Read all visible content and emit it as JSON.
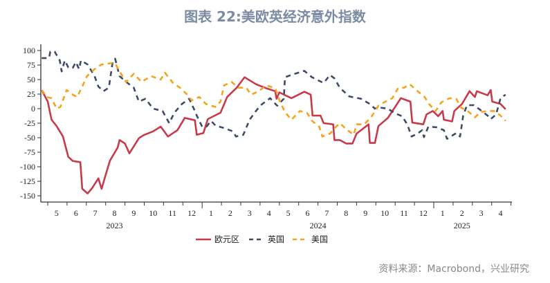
{
  "title": "图表 22:美欧英经济意外指数",
  "source": "资料来源：Macrobond，兴业研究",
  "chart_data": {
    "type": "line",
    "title": "图表 22:美欧英经济意外指数",
    "xlabel": "",
    "ylabel": "",
    "ylim": [
      -150,
      100
    ],
    "yticks": [
      100,
      75,
      50,
      25,
      0,
      -25,
      -50,
      -75,
      -100,
      -125,
      -150
    ],
    "xlim": [
      "2023-04-20",
      "2025-04-30"
    ],
    "xtick_months": [
      {
        "label": "5",
        "date": "2023-05-15"
      },
      {
        "label": "6",
        "date": "2023-06-15"
      },
      {
        "label": "7",
        "date": "2023-07-15"
      },
      {
        "label": "8",
        "date": "2023-08-15"
      },
      {
        "label": "9",
        "date": "2023-09-15"
      },
      {
        "label": "10",
        "date": "2023-10-15"
      },
      {
        "label": "11",
        "date": "2023-11-15"
      },
      {
        "label": "12",
        "date": "2023-12-15"
      },
      {
        "label": "1",
        "date": "2024-01-15"
      },
      {
        "label": "2",
        "date": "2024-02-15"
      },
      {
        "label": "3",
        "date": "2024-03-15"
      },
      {
        "label": "4",
        "date": "2024-04-15"
      },
      {
        "label": "5",
        "date": "2024-05-15"
      },
      {
        "label": "6",
        "date": "2024-06-15"
      },
      {
        "label": "7",
        "date": "2024-07-15"
      },
      {
        "label": "8",
        "date": "2024-08-15"
      },
      {
        "label": "9",
        "date": "2024-09-15"
      },
      {
        "label": "10",
        "date": "2024-10-15"
      },
      {
        "label": "11",
        "date": "2024-11-15"
      },
      {
        "label": "12",
        "date": "2024-12-15"
      },
      {
        "label": "1",
        "date": "2025-01-15"
      },
      {
        "label": "2",
        "date": "2025-02-15"
      },
      {
        "label": "3",
        "date": "2025-03-15"
      },
      {
        "label": "4",
        "date": "2025-04-15"
      }
    ],
    "xtick_years": [
      {
        "label": "2023",
        "date": "2023-08-15"
      },
      {
        "label": "2024",
        "date": "2024-07-01"
      },
      {
        "label": "2025",
        "date": "2025-02-15"
      }
    ],
    "grid": false,
    "legend": "bottom",
    "series": [
      {
        "name": "欧元区",
        "color": "#c8394b",
        "style": "solid",
        "points": [
          [
            "2023-04-22",
            32
          ],
          [
            "2023-05-01",
            12
          ],
          [
            "2023-05-07",
            -19
          ],
          [
            "2023-05-15",
            -30
          ],
          [
            "2023-05-25",
            -48
          ],
          [
            "2023-06-03",
            -83
          ],
          [
            "2023-06-10",
            -90
          ],
          [
            "2023-06-22",
            -92
          ],
          [
            "2023-06-25",
            -138
          ],
          [
            "2023-07-03",
            -146
          ],
          [
            "2023-07-10",
            -137
          ],
          [
            "2023-07-20",
            -120
          ],
          [
            "2023-07-25",
            -138
          ],
          [
            "2023-08-01",
            -114
          ],
          [
            "2023-08-08",
            -89
          ],
          [
            "2023-08-20",
            -67
          ],
          [
            "2023-08-23",
            -54
          ],
          [
            "2023-09-01",
            -60
          ],
          [
            "2023-09-08",
            -77
          ],
          [
            "2023-09-23",
            -51
          ],
          [
            "2023-09-30",
            -46
          ],
          [
            "2023-10-15",
            -39
          ],
          [
            "2023-10-27",
            -31
          ],
          [
            "2023-11-08",
            -48
          ],
          [
            "2023-11-23",
            -37
          ],
          [
            "2023-12-04",
            -16
          ],
          [
            "2023-12-20",
            -20
          ],
          [
            "2023-12-23",
            -45
          ],
          [
            "2024-01-03",
            -42
          ],
          [
            "2024-01-10",
            -18
          ],
          [
            "2024-01-30",
            -7
          ],
          [
            "2024-02-10",
            20
          ],
          [
            "2024-02-25",
            36
          ],
          [
            "2024-03-07",
            54
          ],
          [
            "2024-03-25",
            42
          ],
          [
            "2024-04-11",
            35
          ],
          [
            "2024-04-25",
            30
          ],
          [
            "2024-04-27",
            17
          ],
          [
            "2024-05-01",
            28
          ],
          [
            "2024-05-20",
            18
          ],
          [
            "2024-06-10",
            29
          ],
          [
            "2024-06-20",
            24
          ],
          [
            "2024-06-23",
            -12
          ],
          [
            "2024-07-05",
            -12
          ],
          [
            "2024-07-10",
            -25
          ],
          [
            "2024-07-25",
            -27
          ],
          [
            "2024-07-27",
            -54
          ],
          [
            "2024-08-05",
            -54
          ],
          [
            "2024-08-15",
            -60
          ],
          [
            "2024-08-25",
            -60
          ],
          [
            "2024-09-01",
            -43
          ],
          [
            "2024-09-20",
            -27
          ],
          [
            "2024-09-22",
            -59
          ],
          [
            "2024-09-30",
            -59
          ],
          [
            "2024-10-05",
            -30
          ],
          [
            "2024-10-20",
            -16
          ],
          [
            "2024-11-10",
            18
          ],
          [
            "2024-11-25",
            12
          ],
          [
            "2024-11-28",
            -24
          ],
          [
            "2024-12-15",
            -27
          ],
          [
            "2024-12-20",
            -10
          ],
          [
            "2024-12-30",
            -4
          ],
          [
            "2025-01-08",
            -13
          ],
          [
            "2025-01-15",
            -4
          ],
          [
            "2025-01-17",
            -19
          ],
          [
            "2025-01-30",
            -22
          ],
          [
            "2025-02-03",
            -4
          ],
          [
            "2025-02-15",
            8
          ],
          [
            "2025-02-27",
            30
          ],
          [
            "2025-03-05",
            20
          ],
          [
            "2025-03-08",
            30
          ],
          [
            "2025-03-25",
            23
          ],
          [
            "2025-03-30",
            32
          ],
          [
            "2025-04-02",
            12
          ],
          [
            "2025-04-15",
            8
          ],
          [
            "2025-04-23",
            -1
          ]
        ]
      },
      {
        "name": "英国",
        "color": "#3d4b69",
        "style": "dash",
        "points": [
          [
            "2023-04-22",
            87
          ],
          [
            "2023-05-03",
            87
          ],
          [
            "2023-05-05",
            98
          ],
          [
            "2023-05-12",
            98
          ],
          [
            "2023-05-20",
            83
          ],
          [
            "2023-05-23",
            64
          ],
          [
            "2023-05-28",
            83
          ],
          [
            "2023-06-03",
            71
          ],
          [
            "2023-06-10",
            70
          ],
          [
            "2023-06-15",
            80
          ],
          [
            "2023-06-20",
            68
          ],
          [
            "2023-06-23",
            83
          ],
          [
            "2023-07-03",
            76
          ],
          [
            "2023-07-14",
            56
          ],
          [
            "2023-07-20",
            38
          ],
          [
            "2023-07-28",
            30
          ],
          [
            "2023-08-06",
            36
          ],
          [
            "2023-08-12",
            80
          ],
          [
            "2023-08-16",
            86
          ],
          [
            "2023-08-23",
            56
          ],
          [
            "2023-09-03",
            46
          ],
          [
            "2023-09-15",
            36
          ],
          [
            "2023-09-23",
            12
          ],
          [
            "2023-10-03",
            17
          ],
          [
            "2023-10-15",
            0
          ],
          [
            "2023-10-30",
            -4
          ],
          [
            "2023-11-10",
            -25
          ],
          [
            "2023-11-18",
            -7
          ],
          [
            "2023-11-30",
            8
          ],
          [
            "2023-12-11",
            17
          ],
          [
            "2023-12-20",
            -4
          ],
          [
            "2023-12-23",
            -12
          ],
          [
            "2024-01-01",
            -31
          ],
          [
            "2024-01-08",
            -31
          ],
          [
            "2024-01-15",
            -21
          ],
          [
            "2024-01-22",
            -29
          ],
          [
            "2024-02-04",
            -33
          ],
          [
            "2024-02-19",
            -39
          ],
          [
            "2024-02-24",
            -48
          ],
          [
            "2024-03-05",
            -45
          ],
          [
            "2024-03-15",
            -19
          ],
          [
            "2024-03-25",
            -4
          ],
          [
            "2024-04-02",
            6
          ],
          [
            "2024-04-17",
            18
          ],
          [
            "2024-04-28",
            5
          ],
          [
            "2024-05-08",
            17
          ],
          [
            "2024-05-10",
            54
          ],
          [
            "2024-05-20",
            58
          ],
          [
            "2024-06-10",
            65
          ],
          [
            "2024-06-22",
            54
          ],
          [
            "2024-07-10",
            44
          ],
          [
            "2024-07-20",
            58
          ],
          [
            "2024-07-27",
            52
          ],
          [
            "2024-08-05",
            36
          ],
          [
            "2024-08-20",
            21
          ],
          [
            "2024-09-08",
            17
          ],
          [
            "2024-09-22",
            8
          ],
          [
            "2024-09-30",
            0
          ],
          [
            "2024-10-06",
            2
          ],
          [
            "2024-10-20",
            0
          ],
          [
            "2024-10-31",
            -8
          ],
          [
            "2024-11-12",
            -13
          ],
          [
            "2024-11-20",
            -27
          ],
          [
            "2024-11-27",
            -48
          ],
          [
            "2024-12-07",
            -42
          ],
          [
            "2024-12-13",
            -37
          ],
          [
            "2024-12-16",
            -49
          ],
          [
            "2024-12-23",
            -31
          ],
          [
            "2025-01-05",
            -32
          ],
          [
            "2025-01-17",
            -37
          ],
          [
            "2025-01-22",
            -52
          ],
          [
            "2025-02-06",
            -42
          ],
          [
            "2025-02-12",
            -48
          ],
          [
            "2025-02-17",
            -12
          ],
          [
            "2025-02-23",
            6
          ],
          [
            "2025-03-03",
            6
          ],
          [
            "2025-03-12",
            -1
          ],
          [
            "2025-03-25",
            -12
          ],
          [
            "2025-03-30",
            -18
          ],
          [
            "2025-04-08",
            -10
          ],
          [
            "2025-04-15",
            18
          ],
          [
            "2025-04-23",
            24
          ]
        ]
      },
      {
        "name": "美国",
        "color": "#f5a31a",
        "style": "dash",
        "points": [
          [
            "2023-04-22",
            32
          ],
          [
            "2023-04-30",
            20
          ],
          [
            "2023-05-07",
            18
          ],
          [
            "2023-05-15",
            0
          ],
          [
            "2023-05-21",
            3
          ],
          [
            "2023-05-31",
            32
          ],
          [
            "2023-06-10",
            24
          ],
          [
            "2023-06-17",
            20
          ],
          [
            "2023-06-25",
            38
          ],
          [
            "2023-07-02",
            56
          ],
          [
            "2023-07-14",
            68
          ],
          [
            "2023-07-25",
            76
          ],
          [
            "2023-08-08",
            78
          ],
          [
            "2023-08-16",
            78
          ],
          [
            "2023-08-23",
            64
          ],
          [
            "2023-09-03",
            46
          ],
          [
            "2023-09-15",
            60
          ],
          [
            "2023-09-27",
            46
          ],
          [
            "2023-10-12",
            56
          ],
          [
            "2023-10-27",
            50
          ],
          [
            "2023-11-03",
            62
          ],
          [
            "2023-11-16",
            44
          ],
          [
            "2023-11-27",
            36
          ],
          [
            "2023-12-08",
            24
          ],
          [
            "2023-12-15",
            14
          ],
          [
            "2023-12-27",
            20
          ],
          [
            "2024-01-07",
            8
          ],
          [
            "2024-01-22",
            3
          ],
          [
            "2024-01-30",
            12
          ],
          [
            "2024-02-05",
            40
          ],
          [
            "2024-02-17",
            46
          ],
          [
            "2024-02-28",
            36
          ],
          [
            "2024-03-10",
            36
          ],
          [
            "2024-03-17",
            24
          ],
          [
            "2024-03-28",
            29
          ],
          [
            "2024-04-11",
            40
          ],
          [
            "2024-04-25",
            35
          ],
          [
            "2024-05-02",
            12
          ],
          [
            "2024-05-10",
            -6
          ],
          [
            "2024-05-20",
            -19
          ],
          [
            "2024-06-03",
            -4
          ],
          [
            "2024-06-14",
            -7
          ],
          [
            "2024-06-22",
            -21
          ],
          [
            "2024-07-03",
            -31
          ],
          [
            "2024-07-08",
            -48
          ],
          [
            "2024-07-20",
            -43
          ],
          [
            "2024-07-28",
            -33
          ],
          [
            "2024-08-05",
            -25
          ],
          [
            "2024-08-16",
            -36
          ],
          [
            "2024-08-27",
            -45
          ],
          [
            "2024-09-01",
            -27
          ],
          [
            "2024-09-13",
            -27
          ],
          [
            "2024-09-24",
            -15
          ],
          [
            "2024-10-05",
            5
          ],
          [
            "2024-10-16",
            12
          ],
          [
            "2024-10-27",
            18
          ],
          [
            "2024-11-06",
            36
          ],
          [
            "2024-11-15",
            36
          ],
          [
            "2024-11-24",
            42
          ],
          [
            "2024-12-06",
            30
          ],
          [
            "2024-12-17",
            20
          ],
          [
            "2024-12-24",
            8
          ],
          [
            "2025-01-04",
            -4
          ],
          [
            "2025-01-13",
            11
          ],
          [
            "2025-01-26",
            18
          ],
          [
            "2025-02-06",
            17
          ],
          [
            "2025-02-13",
            2
          ],
          [
            "2025-02-24",
            -4
          ],
          [
            "2025-03-05",
            -15
          ],
          [
            "2025-03-14",
            -6
          ],
          [
            "2025-03-25",
            -4
          ],
          [
            "2025-04-05",
            -4
          ],
          [
            "2025-04-15",
            -12
          ],
          [
            "2025-04-23",
            -21
          ]
        ]
      }
    ]
  }
}
